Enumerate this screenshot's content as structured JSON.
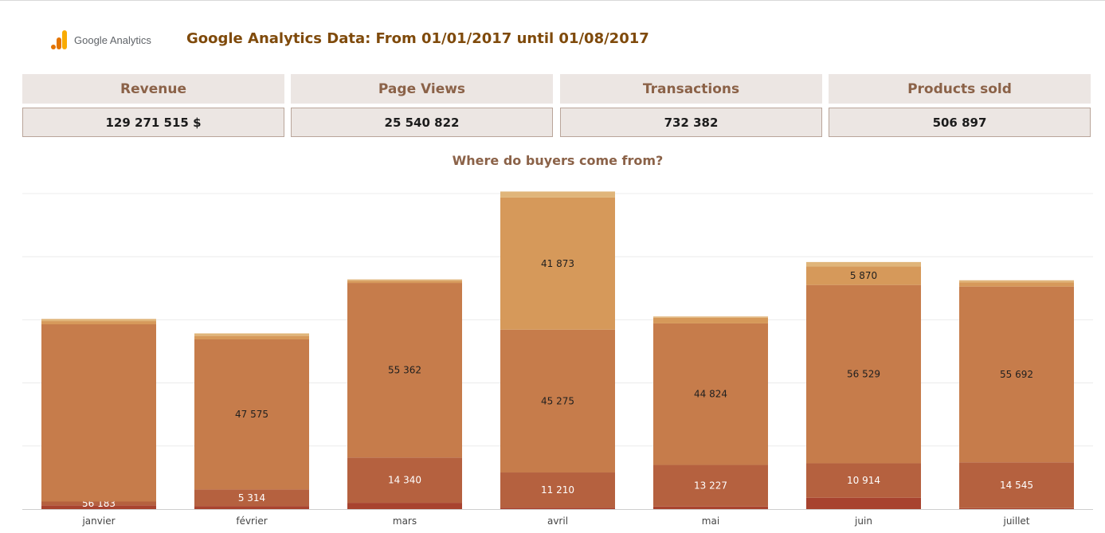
{
  "header": {
    "logo_text": "Google Analytics",
    "title": "Google Analytics Data: From 01/01/2017 until 01/08/2017"
  },
  "kpis": [
    {
      "label": "Revenue",
      "value": "129 271 515 $"
    },
    {
      "label": "Page Views",
      "value": "25 540 822"
    },
    {
      "label": "Transactions",
      "value": "732 382"
    },
    {
      "label": "Products sold",
      "value": "506 897"
    }
  ],
  "colors": {
    "label_bg": "#ece6e3",
    "label_text": "#8b6248",
    "title_text": "#7f4a0b",
    "series": [
      "#a8432f",
      "#b5613f",
      "#c67c4b",
      "#d6995a",
      "#e0b57a"
    ]
  },
  "chart_data": {
    "type": "bar",
    "stacked": true,
    "title": "Where do buyers come from?",
    "xlabel": "",
    "ylabel": "",
    "categories": [
      "janvier",
      "février",
      "mars",
      "avril",
      "mai",
      "juin",
      "juillet"
    ],
    "series": [
      {
        "values": [
          1200,
          900,
          2000,
          400,
          800,
          3600,
          300
        ]
      },
      {
        "values": [
          1200,
          5314,
          14340,
          11210,
          13227,
          10914,
          14545
        ]
      },
      {
        "values": [
          56183,
          47575,
          55362,
          45275,
          44824,
          56529,
          55692
        ]
      },
      {
        "values": [
          1000,
          1100,
          700,
          41873,
          1800,
          5870,
          1300
        ]
      },
      {
        "values": [
          700,
          800,
          400,
          1900,
          400,
          1400,
          700
        ]
      }
    ],
    "labels_shown": [
      [
        null,
        "56 183"
      ],
      [
        null,
        "5 314",
        "47 575"
      ],
      [
        null,
        "14 340",
        "55 362"
      ],
      [
        null,
        "11 210",
        "45 275",
        "41 873"
      ],
      [
        null,
        "13 227",
        "44 824"
      ],
      [
        null,
        "10 914",
        "56 529",
        "5 870"
      ],
      [
        null,
        "14 545",
        "55 692"
      ]
    ],
    "ylim": [
      0,
      100000
    ],
    "grid": true,
    "legend": "none"
  }
}
